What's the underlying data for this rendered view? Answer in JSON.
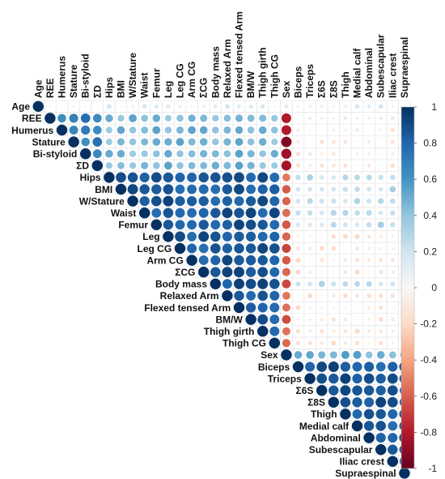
{
  "chart_data": {
    "type": "heatmap",
    "variables": [
      "Age",
      "REE",
      "Humerus",
      "Stature",
      "Bi-styloid",
      "ΣD",
      "Hips",
      "BMI",
      "W/Stature",
      "Waist",
      "Femur",
      "Leg",
      "Leg CG",
      "Arm CG",
      "ΣCG",
      "Body mass",
      "Relaxed Arm",
      "Flexed tensed Arm",
      "BM/W",
      "Thigh girth",
      "Thigh CG",
      "Sex",
      "Biceps",
      "Triceps",
      "Σ6S",
      "Σ8S",
      "Thigh",
      "Medial calf",
      "Abdominal",
      "Subescapular",
      "Iliac crest",
      "Supraespinal"
    ],
    "groups": {
      "A": [
        1,
        5
      ],
      "B": [
        6,
        20
      ],
      "C": [
        22,
        31
      ]
    },
    "correlations": {
      "age_row": 0.1,
      "within_A": 0.7,
      "within_B": 0.85,
      "A_B": 0.45,
      "within_C": 0.85,
      "A_C": -0.08,
      "B_C": 0.25,
      "B_C_circ": -0.12,
      "sex_A": -0.85,
      "sex_B": -0.6,
      "sex_C": 0.5
    },
    "legend": {
      "ticks": [
        "1",
        "0.8",
        "0.6",
        "0.4",
        "0.2",
        "0",
        "-0.2",
        "-0.4",
        "-0.6",
        "-0.8",
        "-1"
      ],
      "colors": {
        "high": "#053061",
        "mid": "#f7f7f7",
        "low": "#67001f"
      }
    },
    "axis_range": [
      -1,
      1
    ]
  }
}
